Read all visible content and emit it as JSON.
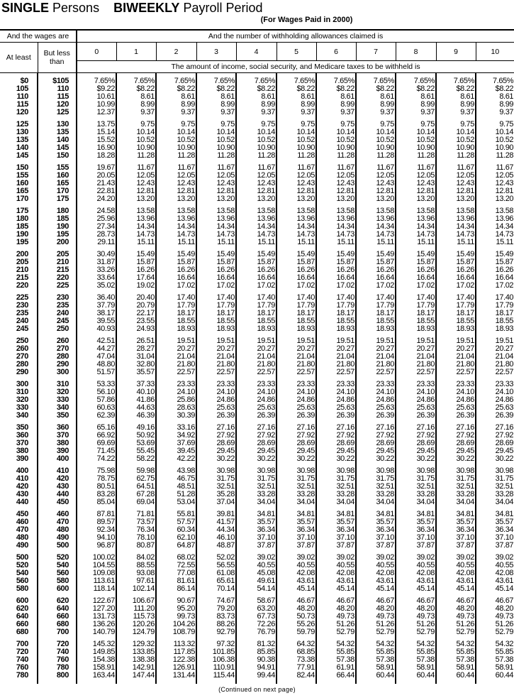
{
  "title": {
    "part1_bold": "SINGLE",
    "part1": "Persons",
    "part2_bold": "BIWEEKLY",
    "part2": "Payroll Period"
  },
  "subtitle": "(For Wages Paid in 2000)",
  "header": {
    "wages_label": "And the wages are",
    "allowances_label": "And the number of withholding allowances claimed is",
    "at_least": "At least",
    "but_less_than": "But less than",
    "allowances": [
      "0",
      "1",
      "2",
      "3",
      "4",
      "5",
      "6",
      "7",
      "8",
      "9",
      "10"
    ],
    "amount_label": "The amount of income, social security, and Medicare taxes to be withheld is"
  },
  "rows": [
    [
      "$0",
      "$105",
      "7.65%",
      "7.65%",
      "7.65%",
      "7.65%",
      "7.65%",
      "7.65%",
      "7.65%",
      "7.65%",
      "7.65%",
      "7.65%",
      "7.65%"
    ],
    [
      "105",
      "110",
      "$9.22",
      "$8.22",
      "$8.22",
      "$8.22",
      "$8.22",
      "$8.22",
      "$8.22",
      "$8.22",
      "$8.22",
      "$8.22",
      "$8.22"
    ],
    [
      "110",
      "115",
      "10.61",
      "8.61",
      "8.61",
      "8.61",
      "8.61",
      "8.61",
      "8.61",
      "8.61",
      "8.61",
      "8.61",
      "8.61"
    ],
    [
      "115",
      "120",
      "10.99",
      "8.99",
      "8.99",
      "8.99",
      "8.99",
      "8.99",
      "8.99",
      "8.99",
      "8.99",
      "8.99",
      "8.99"
    ],
    [
      "120",
      "125",
      "12.37",
      "9.37",
      "9.37",
      "9.37",
      "9.37",
      "9.37",
      "9.37",
      "9.37",
      "9.37",
      "9.37",
      "9.37"
    ],
    [
      "125",
      "130",
      "13.75",
      "9.75",
      "9.75",
      "9.75",
      "9.75",
      "9.75",
      "9.75",
      "9.75",
      "9.75",
      "9.75",
      "9.75"
    ],
    [
      "130",
      "135",
      "15.14",
      "10.14",
      "10.14",
      "10.14",
      "10.14",
      "10.14",
      "10.14",
      "10.14",
      "10.14",
      "10.14",
      "10.14"
    ],
    [
      "135",
      "140",
      "15.52",
      "10.52",
      "10.52",
      "10.52",
      "10.52",
      "10.52",
      "10.52",
      "10.52",
      "10.52",
      "10.52",
      "10.52"
    ],
    [
      "140",
      "145",
      "16.90",
      "10.90",
      "10.90",
      "10.90",
      "10.90",
      "10.90",
      "10.90",
      "10.90",
      "10.90",
      "10.90",
      "10.90"
    ],
    [
      "145",
      "150",
      "18.28",
      "11.28",
      "11.28",
      "11.28",
      "11.28",
      "11.28",
      "11.28",
      "11.28",
      "11.28",
      "11.28",
      "11.28"
    ],
    [
      "150",
      "155",
      "19.67",
      "11.67",
      "11.67",
      "11.67",
      "11.67",
      "11.67",
      "11.67",
      "11.67",
      "11.67",
      "11.67",
      "11.67"
    ],
    [
      "155",
      "160",
      "20.05",
      "12.05",
      "12.05",
      "12.05",
      "12.05",
      "12.05",
      "12.05",
      "12.05",
      "12.05",
      "12.05",
      "12.05"
    ],
    [
      "160",
      "165",
      "21.43",
      "12.43",
      "12.43",
      "12.43",
      "12.43",
      "12.43",
      "12.43",
      "12.43",
      "12.43",
      "12.43",
      "12.43"
    ],
    [
      "165",
      "170",
      "22.81",
      "12.81",
      "12.81",
      "12.81",
      "12.81",
      "12.81",
      "12.81",
      "12.81",
      "12.81",
      "12.81",
      "12.81"
    ],
    [
      "170",
      "175",
      "24.20",
      "13.20",
      "13.20",
      "13.20",
      "13.20",
      "13.20",
      "13.20",
      "13.20",
      "13.20",
      "13.20",
      "13.20"
    ],
    [
      "175",
      "180",
      "24.58",
      "13.58",
      "13.58",
      "13.58",
      "13.58",
      "13.58",
      "13.58",
      "13.58",
      "13.58",
      "13.58",
      "13.58"
    ],
    [
      "180",
      "185",
      "25.96",
      "13.96",
      "13.96",
      "13.96",
      "13.96",
      "13.96",
      "13.96",
      "13.96",
      "13.96",
      "13.96",
      "13.96"
    ],
    [
      "185",
      "190",
      "27.34",
      "14.34",
      "14.34",
      "14.34",
      "14.34",
      "14.34",
      "14.34",
      "14.34",
      "14.34",
      "14.34",
      "14.34"
    ],
    [
      "190",
      "195",
      "28.73",
      "14.73",
      "14.73",
      "14.73",
      "14.73",
      "14.73",
      "14.73",
      "14.73",
      "14.73",
      "14.73",
      "14.73"
    ],
    [
      "195",
      "200",
      "29.11",
      "15.11",
      "15.11",
      "15.11",
      "15.11",
      "15.11",
      "15.11",
      "15.11",
      "15.11",
      "15.11",
      "15.11"
    ],
    [
      "200",
      "205",
      "30.49",
      "15.49",
      "15.49",
      "15.49",
      "15.49",
      "15.49",
      "15.49",
      "15.49",
      "15.49",
      "15.49",
      "15.49"
    ],
    [
      "205",
      "210",
      "31.87",
      "15.87",
      "15.87",
      "15.87",
      "15.87",
      "15.87",
      "15.87",
      "15.87",
      "15.87",
      "15.87",
      "15.87"
    ],
    [
      "210",
      "215",
      "33.26",
      "16.26",
      "16.26",
      "16.26",
      "16.26",
      "16.26",
      "16.26",
      "16.26",
      "16.26",
      "16.26",
      "16.26"
    ],
    [
      "215",
      "220",
      "33.64",
      "17.64",
      "16.64",
      "16.64",
      "16.64",
      "16.64",
      "16.64",
      "16.64",
      "16.64",
      "16.64",
      "16.64"
    ],
    [
      "220",
      "225",
      "35.02",
      "19.02",
      "17.02",
      "17.02",
      "17.02",
      "17.02",
      "17.02",
      "17.02",
      "17.02",
      "17.02",
      "17.02"
    ],
    [
      "225",
      "230",
      "36.40",
      "20.40",
      "17.40",
      "17.40",
      "17.40",
      "17.40",
      "17.40",
      "17.40",
      "17.40",
      "17.40",
      "17.40"
    ],
    [
      "230",
      "235",
      "37.79",
      "20.79",
      "17.79",
      "17.79",
      "17.79",
      "17.79",
      "17.79",
      "17.79",
      "17.79",
      "17.79",
      "17.79"
    ],
    [
      "235",
      "240",
      "38.17",
      "22.17",
      "18.17",
      "18.17",
      "18.17",
      "18.17",
      "18.17",
      "18.17",
      "18.17",
      "18.17",
      "18.17"
    ],
    [
      "240",
      "245",
      "39.55",
      "23.55",
      "18.55",
      "18.55",
      "18.55",
      "18.55",
      "18.55",
      "18.55",
      "18.55",
      "18.55",
      "18.55"
    ],
    [
      "245",
      "250",
      "40.93",
      "24.93",
      "18.93",
      "18.93",
      "18.93",
      "18.93",
      "18.93",
      "18.93",
      "18.93",
      "18.93",
      "18.93"
    ],
    [
      "250",
      "260",
      "42.51",
      "26.51",
      "19.51",
      "19.51",
      "19.51",
      "19.51",
      "19.51",
      "19.51",
      "19.51",
      "19.51",
      "19.51"
    ],
    [
      "260",
      "270",
      "44.27",
      "28.27",
      "20.27",
      "20.27",
      "20.27",
      "20.27",
      "20.27",
      "20.27",
      "20.27",
      "20.27",
      "20.27"
    ],
    [
      "270",
      "280",
      "47.04",
      "31.04",
      "21.04",
      "21.04",
      "21.04",
      "21.04",
      "21.04",
      "21.04",
      "21.04",
      "21.04",
      "21.04"
    ],
    [
      "280",
      "290",
      "48.80",
      "32.80",
      "21.80",
      "21.80",
      "21.80",
      "21.80",
      "21.80",
      "21.80",
      "21.80",
      "21.80",
      "21.80"
    ],
    [
      "290",
      "300",
      "51.57",
      "35.57",
      "22.57",
      "22.57",
      "22.57",
      "22.57",
      "22.57",
      "22.57",
      "22.57",
      "22.57",
      "22.57"
    ],
    [
      "300",
      "310",
      "53.33",
      "37.33",
      "23.33",
      "23.33",
      "23.33",
      "23.33",
      "23.33",
      "23.33",
      "23.33",
      "23.33",
      "23.33"
    ],
    [
      "310",
      "320",
      "56.10",
      "40.10",
      "24.10",
      "24.10",
      "24.10",
      "24.10",
      "24.10",
      "24.10",
      "24.10",
      "24.10",
      "24.10"
    ],
    [
      "320",
      "330",
      "57.86",
      "41.86",
      "25.86",
      "24.86",
      "24.86",
      "24.86",
      "24.86",
      "24.86",
      "24.86",
      "24.86",
      "24.86"
    ],
    [
      "330",
      "340",
      "60.63",
      "44.63",
      "28.63",
      "25.63",
      "25.63",
      "25.63",
      "25.63",
      "25.63",
      "25.63",
      "25.63",
      "25.63"
    ],
    [
      "340",
      "350",
      "62.39",
      "46.39",
      "30.39",
      "26.39",
      "26.39",
      "26.39",
      "26.39",
      "26.39",
      "26.39",
      "26.39",
      "26.39"
    ],
    [
      "350",
      "360",
      "65.16",
      "49.16",
      "33.16",
      "27.16",
      "27.16",
      "27.16",
      "27.16",
      "27.16",
      "27.16",
      "27.16",
      "27.16"
    ],
    [
      "360",
      "370",
      "66.92",
      "50.92",
      "34.92",
      "27.92",
      "27.92",
      "27.92",
      "27.92",
      "27.92",
      "27.92",
      "27.92",
      "27.92"
    ],
    [
      "370",
      "380",
      "69.69",
      "53.69",
      "37.69",
      "28.69",
      "28.69",
      "28.69",
      "28.69",
      "28.69",
      "28.69",
      "28.69",
      "28.69"
    ],
    [
      "380",
      "390",
      "71.45",
      "55.45",
      "39.45",
      "29.45",
      "29.45",
      "29.45",
      "29.45",
      "29.45",
      "29.45",
      "29.45",
      "29.45"
    ],
    [
      "390",
      "400",
      "74.22",
      "58.22",
      "42.22",
      "30.22",
      "30.22",
      "30.22",
      "30.22",
      "30.22",
      "30.22",
      "30.22",
      "30.22"
    ],
    [
      "400",
      "410",
      "75.98",
      "59.98",
      "43.98",
      "30.98",
      "30.98",
      "30.98",
      "30.98",
      "30.98",
      "30.98",
      "30.98",
      "30.98"
    ],
    [
      "410",
      "420",
      "78.75",
      "62.75",
      "46.75",
      "31.75",
      "31.75",
      "31.75",
      "31.75",
      "31.75",
      "31.75",
      "31.75",
      "31.75"
    ],
    [
      "420",
      "430",
      "80.51",
      "64.51",
      "48.51",
      "32.51",
      "32.51",
      "32.51",
      "32.51",
      "32.51",
      "32.51",
      "32.51",
      "32.51"
    ],
    [
      "430",
      "440",
      "83.28",
      "67.28",
      "51.28",
      "35.28",
      "33.28",
      "33.28",
      "33.28",
      "33.28",
      "33.28",
      "33.28",
      "33.28"
    ],
    [
      "440",
      "450",
      "85.04",
      "69.04",
      "53.04",
      "37.04",
      "34.04",
      "34.04",
      "34.04",
      "34.04",
      "34.04",
      "34.04",
      "34.04"
    ],
    [
      "450",
      "460",
      "87.81",
      "71.81",
      "55.81",
      "39.81",
      "34.81",
      "34.81",
      "34.81",
      "34.81",
      "34.81",
      "34.81",
      "34.81"
    ],
    [
      "460",
      "470",
      "89.57",
      "73.57",
      "57.57",
      "41.57",
      "35.57",
      "35.57",
      "35.57",
      "35.57",
      "35.57",
      "35.57",
      "35.57"
    ],
    [
      "470",
      "480",
      "92.34",
      "76.34",
      "60.34",
      "44.34",
      "36.34",
      "36.34",
      "36.34",
      "36.34",
      "36.34",
      "36.34",
      "36.34"
    ],
    [
      "480",
      "490",
      "94.10",
      "78.10",
      "62.10",
      "46.10",
      "37.10",
      "37.10",
      "37.10",
      "37.10",
      "37.10",
      "37.10",
      "37.10"
    ],
    [
      "490",
      "500",
      "96.87",
      "80.87",
      "64.87",
      "48.87",
      "37.87",
      "37.87",
      "37.87",
      "37.87",
      "37.87",
      "37.87",
      "37.87"
    ],
    [
      "500",
      "520",
      "100.02",
      "84.02",
      "68.02",
      "52.02",
      "39.02",
      "39.02",
      "39.02",
      "39.02",
      "39.02",
      "39.02",
      "39.02"
    ],
    [
      "520",
      "540",
      "104.55",
      "88.55",
      "72.55",
      "56.55",
      "40.55",
      "40.55",
      "40.55",
      "40.55",
      "40.55",
      "40.55",
      "40.55"
    ],
    [
      "540",
      "560",
      "109.08",
      "93.08",
      "77.08",
      "61.08",
      "45.08",
      "42.08",
      "42.08",
      "42.08",
      "42.08",
      "42.08",
      "42.08"
    ],
    [
      "560",
      "580",
      "113.61",
      "97.61",
      "81.61",
      "65.61",
      "49.61",
      "43.61",
      "43.61",
      "43.61",
      "43.61",
      "43.61",
      "43.61"
    ],
    [
      "580",
      "600",
      "118.14",
      "102.14",
      "86.14",
      "70.14",
      "54.14",
      "45.14",
      "45.14",
      "45.14",
      "45.14",
      "45.14",
      "45.14"
    ],
    [
      "600",
      "620",
      "122.67",
      "106.67",
      "90.67",
      "74.67",
      "58.67",
      "46.67",
      "46.67",
      "46.67",
      "46.67",
      "46.67",
      "46.67"
    ],
    [
      "620",
      "640",
      "127.20",
      "111.20",
      "95.20",
      "79.20",
      "63.20",
      "48.20",
      "48.20",
      "48.20",
      "48.20",
      "48.20",
      "48.20"
    ],
    [
      "640",
      "660",
      "131.73",
      "115.73",
      "99.73",
      "83.73",
      "67.73",
      "50.73",
      "49.73",
      "49.73",
      "49.73",
      "49.73",
      "49.73"
    ],
    [
      "660",
      "680",
      "136.26",
      "120.26",
      "104.26",
      "88.26",
      "72.26",
      "55.26",
      "51.26",
      "51.26",
      "51.26",
      "51.26",
      "51.26"
    ],
    [
      "680",
      "700",
      "140.79",
      "124.79",
      "108.79",
      "92.79",
      "76.79",
      "59.79",
      "52.79",
      "52.79",
      "52.79",
      "52.79",
      "52.79"
    ],
    [
      "700",
      "720",
      "145.32",
      "129.32",
      "113.32",
      "97.32",
      "81.32",
      "64.32",
      "54.32",
      "54.32",
      "54.32",
      "54.32",
      "54.32"
    ],
    [
      "720",
      "740",
      "149.85",
      "133.85",
      "117.85",
      "101.85",
      "85.85",
      "68.85",
      "55.85",
      "55.85",
      "55.85",
      "55.85",
      "55.85"
    ],
    [
      "740",
      "760",
      "154.38",
      "138.38",
      "122.38",
      "106.38",
      "90.38",
      "73.38",
      "57.38",
      "57.38",
      "57.38",
      "57.38",
      "57.38"
    ],
    [
      "760",
      "780",
      "158.91",
      "142.91",
      "126.91",
      "110.91",
      "94.91",
      "77.91",
      "61.91",
      "58.91",
      "58.91",
      "58.91",
      "58.91"
    ],
    [
      "780",
      "800",
      "163.44",
      "147.44",
      "131.44",
      "115.44",
      "99.44",
      "82.44",
      "66.44",
      "60.44",
      "60.44",
      "60.44",
      "60.44"
    ]
  ],
  "footer": "(Continued on next page)"
}
